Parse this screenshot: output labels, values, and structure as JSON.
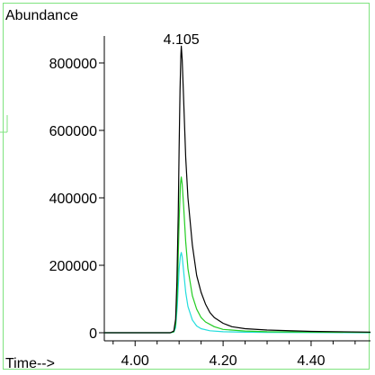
{
  "chart_data": {
    "type": "line",
    "ylabel": "Abundance",
    "xlabel": "Time-->",
    "ylim": [
      0,
      880000
    ],
    "xlim": [
      3.93,
      4.535
    ],
    "x_ticks": [
      4.0,
      4.2,
      4.4
    ],
    "x_tick_labels": [
      "4.00",
      "4.20",
      "4.40"
    ],
    "y_ticks": [
      0,
      200000,
      400000,
      600000,
      800000
    ],
    "y_tick_labels": [
      "0",
      "200000",
      "400000",
      "600000",
      "800000"
    ],
    "peak_annotation": {
      "text": "4.105",
      "x": 4.105
    },
    "grid": false,
    "series": [
      {
        "color": "#000000",
        "x": [
          3.93,
          4.08,
          4.088,
          4.092,
          4.095,
          4.098,
          4.1,
          4.102,
          4.104,
          4.105,
          4.107,
          4.11,
          4.115,
          4.12,
          4.13,
          4.14,
          4.15,
          4.16,
          4.17,
          4.18,
          4.2,
          4.22,
          4.25,
          4.3,
          4.4,
          4.535
        ],
        "y": [
          0,
          0,
          5000,
          40000,
          150000,
          350000,
          550000,
          720000,
          820000,
          850000,
          810000,
          700000,
          520000,
          400000,
          260000,
          170000,
          120000,
          85000,
          60000,
          45000,
          28000,
          18000,
          12000,
          8000,
          4000,
          2000
        ]
      },
      {
        "color": "#22cc22",
        "x": [
          3.93,
          4.08,
          4.088,
          4.092,
          4.096,
          4.1,
          4.103,
          4.105,
          4.107,
          4.11,
          4.115,
          4.12,
          4.13,
          4.14,
          4.15,
          4.16,
          4.18,
          4.2,
          4.25,
          4.3,
          4.4,
          4.535
        ],
        "y": [
          0,
          0,
          3000,
          25000,
          120000,
          330000,
          440000,
          462000,
          440000,
          380000,
          270000,
          190000,
          110000,
          70000,
          45000,
          32000,
          18000,
          10000,
          5000,
          3000,
          2000,
          1000
        ]
      },
      {
        "color": "#22dddd",
        "x": [
          3.93,
          4.08,
          4.088,
          4.092,
          4.096,
          4.1,
          4.103,
          4.105,
          4.107,
          4.11,
          4.115,
          4.12,
          4.13,
          4.14,
          4.15,
          4.17,
          4.2,
          4.25,
          4.3,
          4.4,
          4.535
        ],
        "y": [
          0,
          0,
          2000,
          15000,
          80000,
          190000,
          228000,
          238000,
          225000,
          185000,
          120000,
          78000,
          38000,
          20000,
          12000,
          6000,
          3000,
          1500,
          1000,
          500,
          0
        ]
      }
    ]
  }
}
